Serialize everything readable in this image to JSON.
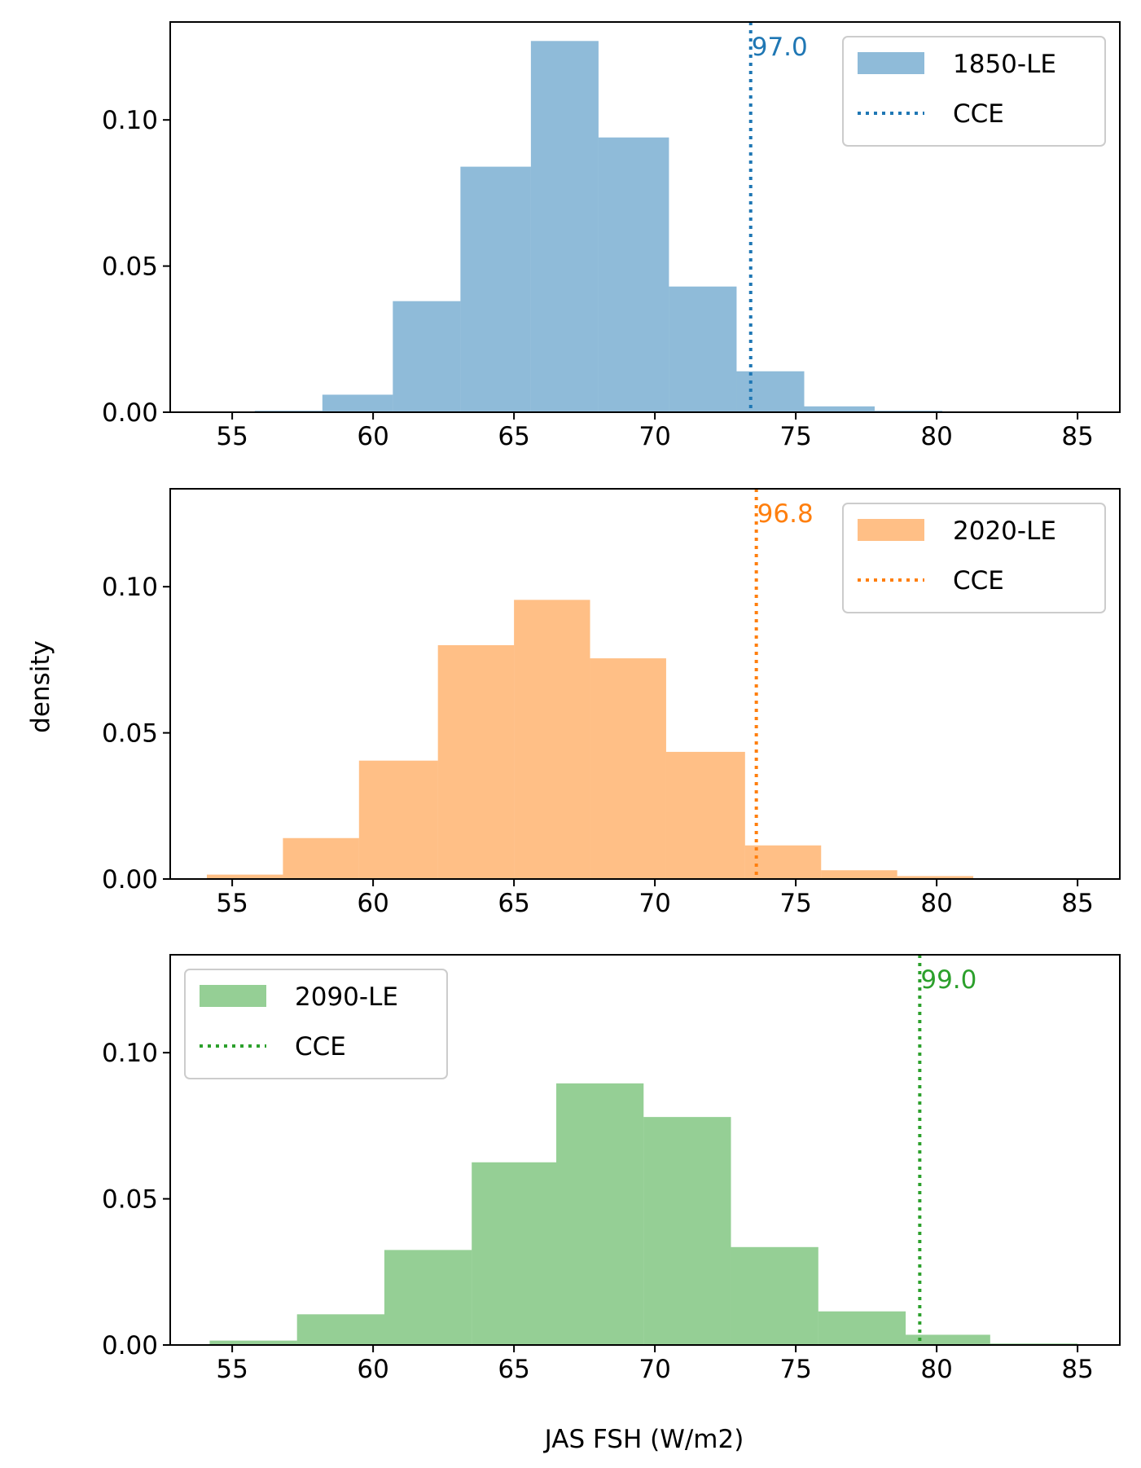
{
  "figure": {
    "ylabel": "density",
    "xlabel": "JAS FSH (W/m2)"
  },
  "chart_data": [
    {
      "type": "histogram",
      "series_name": "1850-LE",
      "line_name": "CCE",
      "color": "#1f77b4",
      "bar_alpha": 0.5,
      "xlim": [
        52.8,
        86.5
      ],
      "ylim": [
        0,
        0.1335
      ],
      "xticks": [
        55,
        60,
        65,
        70,
        75,
        80,
        85
      ],
      "yticks": [
        0.0,
        0.05,
        0.1
      ],
      "ytick_labels": [
        "0.00",
        "0.05",
        "0.10"
      ],
      "legend_position": "upper right",
      "bin_edges": [
        55.8,
        58.2,
        60.7,
        63.1,
        65.6,
        68.0,
        70.5,
        72.9,
        75.3,
        77.8,
        80.2
      ],
      "densities": [
        0.0005,
        0.006,
        0.038,
        0.084,
        0.127,
        0.094,
        0.043,
        0.014,
        0.002,
        0.0005
      ],
      "vline_x": 73.4,
      "annotation": "97.0"
    },
    {
      "type": "histogram",
      "series_name": "2020-LE",
      "line_name": "CCE",
      "color": "#ff7f0e",
      "bar_alpha": 0.5,
      "xlim": [
        52.8,
        86.5
      ],
      "ylim": [
        0,
        0.1335
      ],
      "xticks": [
        55,
        60,
        65,
        70,
        75,
        80,
        85
      ],
      "yticks": [
        0.0,
        0.05,
        0.1
      ],
      "ytick_labels": [
        "0.00",
        "0.05",
        "0.10"
      ],
      "legend_position": "upper right",
      "bin_edges": [
        54.1,
        56.8,
        59.5,
        62.3,
        65.0,
        67.7,
        70.4,
        73.2,
        75.9,
        78.6,
        81.3
      ],
      "densities": [
        0.0015,
        0.014,
        0.0405,
        0.08,
        0.0955,
        0.0755,
        0.0435,
        0.0115,
        0.003,
        0.001
      ],
      "vline_x": 73.6,
      "annotation": "96.8"
    },
    {
      "type": "histogram",
      "series_name": "2090-LE",
      "line_name": "CCE",
      "color": "#2ca02c",
      "bar_alpha": 0.5,
      "xlim": [
        52.8,
        86.5
      ],
      "ylim": [
        0,
        0.1335
      ],
      "xticks": [
        55,
        60,
        65,
        70,
        75,
        80,
        85
      ],
      "yticks": [
        0.0,
        0.05,
        0.1
      ],
      "ytick_labels": [
        "0.00",
        "0.05",
        "0.10"
      ],
      "legend_position": "upper left",
      "bin_edges": [
        54.2,
        57.3,
        60.4,
        63.5,
        66.5,
        69.6,
        72.7,
        75.8,
        78.9,
        81.9,
        85.0
      ],
      "densities": [
        0.0015,
        0.0105,
        0.0325,
        0.0625,
        0.0895,
        0.078,
        0.0335,
        0.0115,
        0.0035,
        0.0005
      ],
      "vline_x": 79.4,
      "annotation": "99.0"
    }
  ]
}
